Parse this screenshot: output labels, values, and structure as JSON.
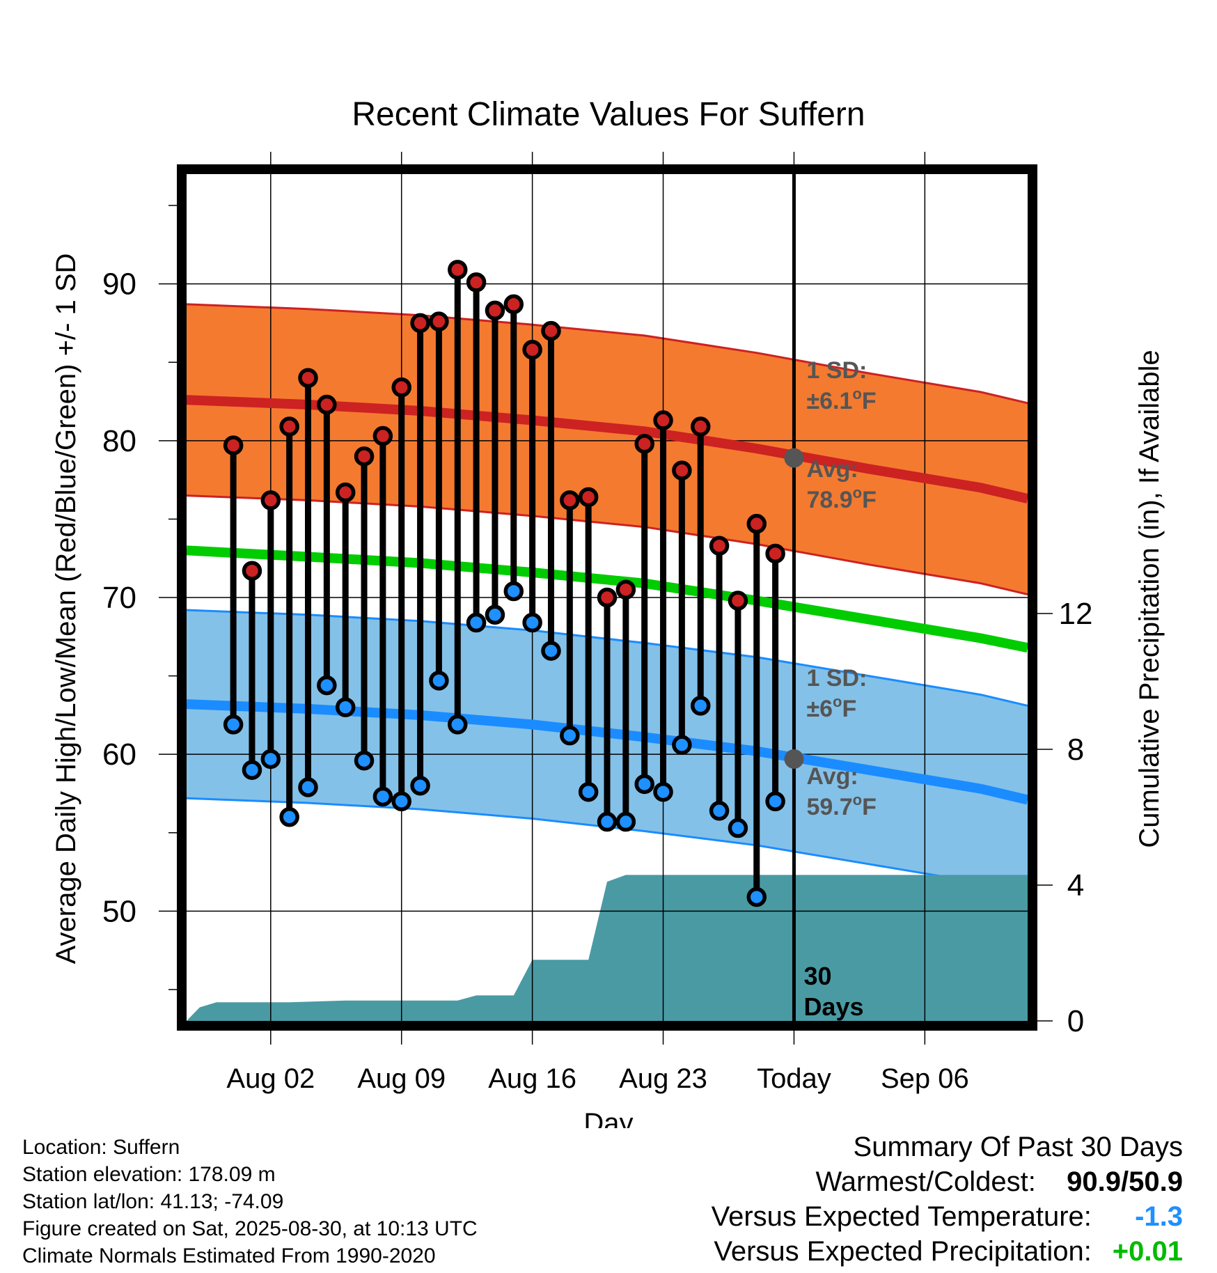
{
  "chart_data": {
    "type": "line",
    "title": "Recent Climate Values For Suffern",
    "xlabel": "Day",
    "ylabel": "Average Daily High/Low/Mean (Red/Blue/Green) +/- 1 SD",
    "y2label": "Cumulative Precipitation (in), If Available",
    "ylim": [
      43,
      97
    ],
    "y2lim": [
      0,
      30
    ],
    "yticks": [
      50,
      60,
      70,
      80,
      90
    ],
    "y2ticks": [
      0,
      4,
      8,
      12
    ],
    "xlim": [
      -2.5,
      42.5
    ],
    "xticks": [
      {
        "x": 2,
        "label": "Aug 02"
      },
      {
        "x": 9,
        "label": "Aug 09"
      },
      {
        "x": 16,
        "label": "Aug 16"
      },
      {
        "x": 23,
        "label": "Aug 23"
      },
      {
        "x": 30,
        "label": "Today"
      },
      {
        "x": 37,
        "label": "Sep 06"
      }
    ],
    "grid": true,
    "today_x": 30,
    "today_label": [
      "30",
      "Days"
    ],
    "normals": {
      "x": [
        -2.5,
        4,
        10,
        16,
        22,
        28,
        34,
        40,
        42.5
      ],
      "high_mean": [
        82.6,
        82.3,
        81.9,
        81.3,
        80.6,
        79.5,
        78.2,
        77.0,
        76.3
      ],
      "high_sd": 6.1,
      "mid_mean": [
        73.0,
        72.6,
        72.2,
        71.6,
        70.9,
        69.8,
        68.6,
        67.4,
        66.8
      ],
      "low_mean": [
        63.2,
        62.9,
        62.5,
        61.9,
        61.1,
        60.2,
        59.0,
        57.8,
        57.1
      ],
      "low_sd": 6.0
    },
    "annotations": {
      "high_sd": [
        "1 SD:",
        "±6.1°F"
      ],
      "high_avg": [
        "Avg:",
        "78.9°F"
      ],
      "low_sd": [
        "1 SD:",
        "±6°F"
      ],
      "low_avg": [
        "Avg:",
        "59.7°F"
      ],
      "high_avg_value": 78.9,
      "low_avg_value": 59.7
    },
    "series": [
      {
        "name": "High",
        "x": [
          0,
          1,
          2,
          3,
          4,
          5,
          6,
          7,
          8,
          9,
          10,
          11,
          12,
          13,
          14,
          15,
          16,
          17,
          18,
          19,
          20,
          21,
          22,
          23,
          24,
          25,
          26,
          27,
          28,
          29
        ],
        "values": [
          79.7,
          71.7,
          76.2,
          80.9,
          84.0,
          82.3,
          76.7,
          79.0,
          80.3,
          83.4,
          87.5,
          87.6,
          90.9,
          90.1,
          88.3,
          88.7,
          85.8,
          87.0,
          76.2,
          76.4,
          70.0,
          70.5,
          79.8,
          81.3,
          78.1,
          80.9,
          73.3,
          69.8,
          74.7,
          72.8
        ]
      },
      {
        "name": "Low",
        "x": [
          0,
          1,
          2,
          3,
          4,
          5,
          6,
          7,
          8,
          9,
          10,
          11,
          12,
          13,
          14,
          15,
          16,
          17,
          18,
          19,
          20,
          21,
          22,
          23,
          24,
          25,
          26,
          27,
          28,
          29
        ],
        "values": [
          61.9,
          59.0,
          59.7,
          56.0,
          57.9,
          64.4,
          63.0,
          59.6,
          57.3,
          57.0,
          58.0,
          64.7,
          61.9,
          68.4,
          68.9,
          70.4,
          68.4,
          66.6,
          61.2,
          57.6,
          55.7,
          55.7,
          58.1,
          57.6,
          60.6,
          63.1,
          56.4,
          55.3,
          50.9,
          57.0
        ]
      },
      {
        "name": "Cumulative Precipitation",
        "x": [
          -2.5,
          -1.8,
          -0.9,
          0,
          3,
          6,
          9,
          12,
          13,
          15,
          16,
          17,
          19,
          20,
          21,
          30,
          42.5
        ],
        "values": [
          0,
          0.4,
          0.55,
          0.55,
          0.55,
          0.6,
          0.6,
          0.6,
          0.75,
          0.75,
          1.8,
          1.8,
          1.8,
          4.1,
          4.3,
          4.3,
          4.3
        ]
      }
    ]
  },
  "footer": {
    "lines": [
      "Location: Suffern",
      "Station elevation: 178.09 m",
      "Station lat/lon: 41.13; -74.09",
      "Figure created on Sat, 2025-08-30, at 10:13 UTC",
      "Climate Normals Estimated From 1990-2020"
    ]
  },
  "summary": {
    "heading": "Summary Of Past 30 Days",
    "warm_cold_label": "Warmest/Coldest:",
    "warm_cold_value": "90.9/50.9",
    "temp_label": "Versus Expected Temperature:",
    "temp_value": "-1.3",
    "precip_label": "Versus Expected Precipitation:",
    "precip_value": "+0.01",
    "colors": {
      "temp_value": "#1e90ff",
      "precip_value": "#00bb00"
    }
  },
  "colors": {
    "high_band": "#f47a30",
    "high_line": "#cc2222",
    "mid_line": "#00cc00",
    "low_band": "#84c1e8",
    "low_line": "#1a8cff",
    "precip": "#4a9aa4",
    "high_marker": "#cc2222",
    "low_marker": "#1e90ff",
    "annotation": "#555555"
  }
}
